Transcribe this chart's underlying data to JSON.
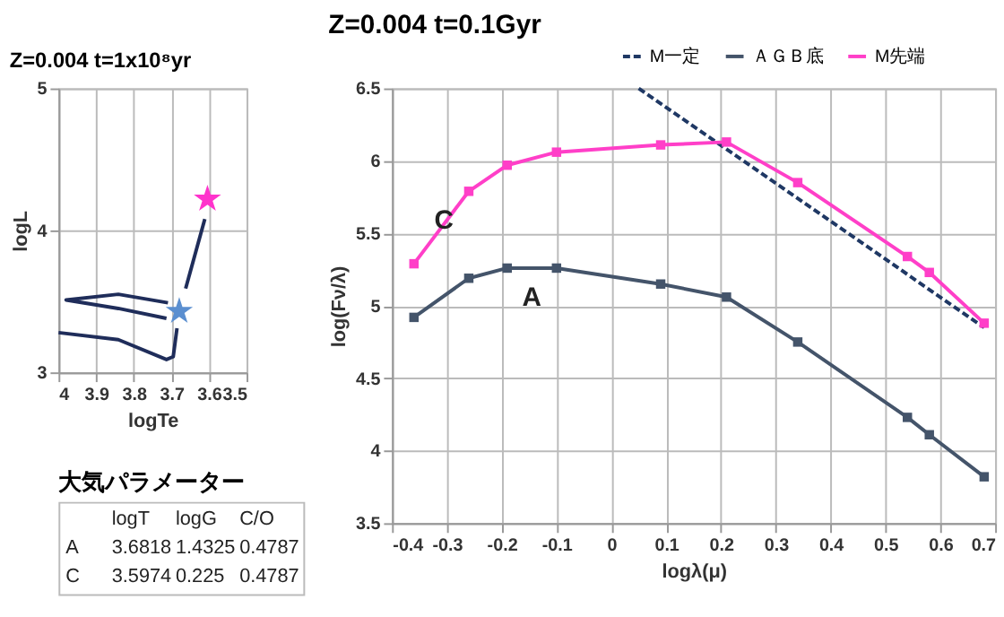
{
  "chart_data": [
    {
      "type": "line",
      "title": "Z=0.004 t=1x10⁸yr",
      "xlabel": "logTe",
      "ylabel": "logL",
      "xlim": [
        4,
        3.5
      ],
      "xticks": [
        4,
        3.9,
        3.8,
        3.7,
        3.6,
        3.5
      ],
      "ylim": [
        3,
        5
      ],
      "yticks": [
        3,
        4,
        5
      ],
      "grid": true,
      "legend": false,
      "series": [
        {
          "type": "line",
          "color": "#1f2d5a",
          "marker": "none",
          "x": [
            4.0,
            3.841,
            3.713,
            3.695,
            3.685
          ],
          "values": [
            3.28,
            3.23,
            3.09,
            3.11,
            3.31
          ]
        },
        {
          "type": "line",
          "color": "#1f2d5a",
          "marker": "none",
          "x": [
            3.713,
            3.841,
            3.98,
            3.841,
            3.709
          ],
          "values": [
            3.38,
            3.45,
            3.51,
            3.55,
            3.49
          ]
        },
        {
          "type": "line",
          "color": "#1f2d5a",
          "marker": "none",
          "x": [
            3.662,
            3.611
          ],
          "values": [
            3.59,
            4.08
          ]
        },
        {
          "type": "scatter",
          "color": "#5b8fd0",
          "marker": "star",
          "x": [
            3.679
          ],
          "values": [
            3.43
          ]
        },
        {
          "type": "scatter",
          "color": "#ff33cc",
          "marker": "star",
          "x": [
            3.604
          ],
          "values": [
            4.22
          ]
        }
      ]
    },
    {
      "type": "other",
      "title": "大気パラメーター",
      "annotations": [
        "logT logG C/O",
        "A 3.6818 1.4325 0.4787",
        "C 3.5974 0.225 0.4787"
      ]
    },
    {
      "type": "line",
      "title": "Z=0.004  t=0.1Gyr",
      "xlabel": "logλ(μ)",
      "ylabel": "log(Fν/λ)",
      "xlim": [
        -0.4,
        0.7
      ],
      "xticks": [
        -0.4,
        -0.3,
        -0.2,
        -0.1,
        0,
        0.1,
        0.2,
        0.3,
        0.4,
        0.5,
        0.6,
        0.7
      ],
      "ylim": [
        3.5,
        6.5
      ],
      "yticks": [
        3.5,
        4,
        4.5,
        5,
        5.5,
        6,
        6.5
      ],
      "grid": true,
      "legend": "top",
      "series": [
        {
          "name": "M一定",
          "type": "line",
          "color": "#1f3864",
          "line_style": "dashed",
          "marker": "none",
          "x": [
            0.05,
            0.68
          ],
          "values": [
            6.5,
            4.85
          ]
        },
        {
          "name": "ＡＧＢ底",
          "type": "line",
          "color": "#44546a",
          "line_style": "solid",
          "marker": "square",
          "x": [
            -0.36,
            -0.26,
            -0.19,
            -0.1,
            0.09,
            0.21,
            0.34,
            0.54,
            0.58,
            0.68
          ],
          "values": [
            4.92,
            5.19,
            5.26,
            5.26,
            5.15,
            5.06,
            4.75,
            4.23,
            4.11,
            3.82
          ]
        },
        {
          "name": "M先端",
          "type": "line",
          "color": "#ff3fc8",
          "line_style": "solid",
          "marker": "square",
          "x": [
            -0.36,
            -0.26,
            -0.19,
            -0.1,
            0.09,
            0.21,
            0.34,
            0.54,
            0.58,
            0.68
          ],
          "values": [
            5.29,
            5.79,
            5.97,
            6.06,
            6.11,
            6.13,
            5.85,
            5.34,
            5.23,
            4.88
          ]
        }
      ],
      "annotations": [
        {
          "text": "C",
          "x": -0.26,
          "y": 5.79
        },
        {
          "text": "A",
          "x": -0.1,
          "y": 5.26
        }
      ]
    }
  ]
}
